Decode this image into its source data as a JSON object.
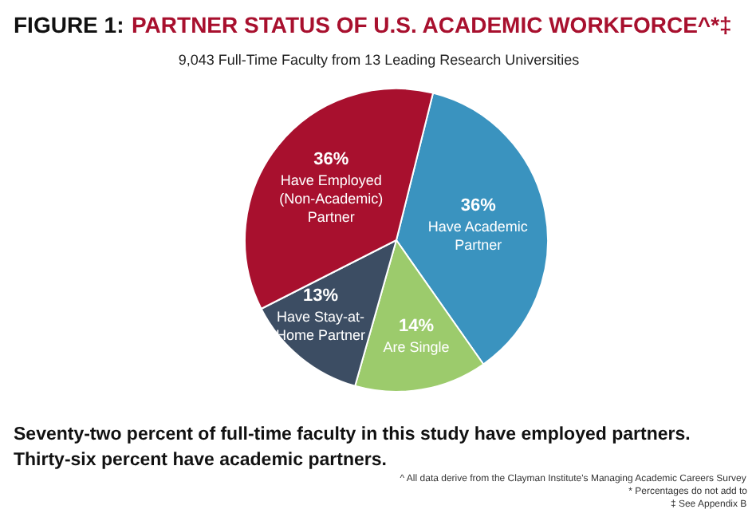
{
  "chart_data": {
    "type": "pie",
    "title": "FIGURE 1: PARTNER STATUS OF U.S. ACADEMIC WORKFORCE^*‡",
    "subtitle": "9,043 Full-Time Faculty from 13 Leading Research Universities",
    "categories": [
      "Have Academic\nPartner",
      "Are Single",
      "Have Stay-at-\nHome Partner",
      "Have Employed\n(Non-Academic)\nPartner"
    ],
    "values": [
      36,
      14,
      13,
      36
    ],
    "value_labels": [
      "36%",
      "14%",
      "13%",
      "36%"
    ],
    "colors": [
      "#3a93bf",
      "#9ccb6c",
      "#3c4d63",
      "#a8102e"
    ],
    "annotations": [
      "Seventy-two percent of full-time faculty in this study have employed partners.",
      "Thirty-six percent have academic partners.",
      "^ All data derive from the Clayman Institute's Managing Academic Careers Survey",
      "* Percentages do not add to",
      "‡ See Appendix B"
    ]
  }
}
